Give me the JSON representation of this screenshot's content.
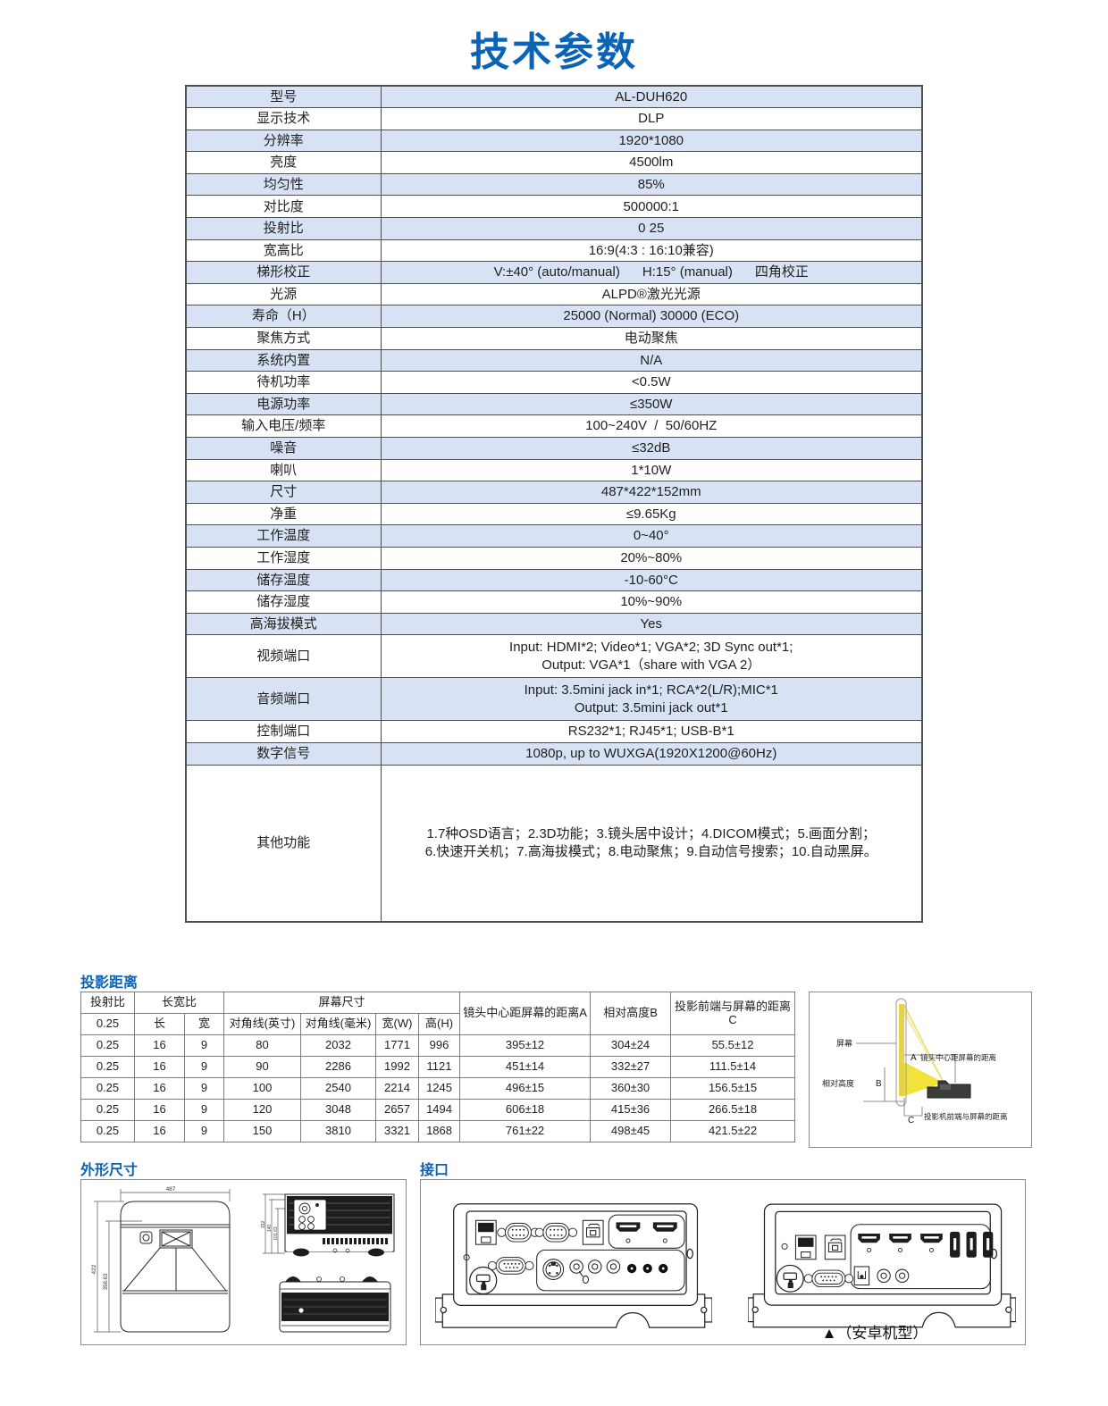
{
  "title": "技术参数",
  "colors": {
    "accent_blue": "#0b63b5",
    "row_light_blue": "#d7e3f4",
    "spec_table_border": "#4f4f4f",
    "diagram_border": "#8a8a8a",
    "beam_yellow": "#f2e23a",
    "projector_dark": "#3c3c3c"
  },
  "spec_table": {
    "rows": [
      {
        "label": "型号",
        "value": "AL-DUH620"
      },
      {
        "label": "显示技术",
        "value": "DLP"
      },
      {
        "label": "分辨率",
        "value": "1920*1080"
      },
      {
        "label": "亮度",
        "value": "4500lm"
      },
      {
        "label": "均匀性",
        "value": "85%"
      },
      {
        "label": "对比度",
        "value": "500000:1"
      },
      {
        "label": "投射比",
        "value": "0 25"
      },
      {
        "label": "宽高比",
        "value": "16:9(4:3 : 16:10兼容)"
      },
      {
        "label": "梯形校正",
        "value": "V:±40° (auto/manual)      H:15° (manual)      四角校正"
      },
      {
        "label": "光源",
        "value": "ALPD®激光光源"
      },
      {
        "label": "寿命（H）",
        "value": "25000 (Normal) 30000 (ECO)"
      },
      {
        "label": "聚焦方式",
        "value": "电动聚焦"
      },
      {
        "label": "系统内置",
        "value": "N/A"
      },
      {
        "label": "待机功率",
        "value": "<0.5W"
      },
      {
        "label": "电源功率",
        "value": "≤350W"
      },
      {
        "label": "输入电压/频率",
        "value": "100~240V  /  50/60HZ"
      },
      {
        "label": "噪音",
        "value": "≤32dB"
      },
      {
        "label": "喇叭",
        "value": "1*10W"
      },
      {
        "label": "尺寸",
        "value": "487*422*152mm"
      },
      {
        "label": "净重",
        "value": "≤9.65Kg"
      },
      {
        "label": "工作温度",
        "value": "0~40°"
      },
      {
        "label": "工作湿度",
        "value": "20%~80%"
      },
      {
        "label": "储存温度",
        "value": "-10-60°C"
      },
      {
        "label": "储存湿度",
        "value": "10%~90%"
      },
      {
        "label": "高海拔模式",
        "value": "Yes"
      },
      {
        "label": "视频端口",
        "lines": [
          "Input: HDMI*2; Video*1; VGA*2; 3D Sync out*1;",
          "Output: VGA*1（share with VGA 2）"
        ]
      },
      {
        "label": "音频端口",
        "lines": [
          "Input: 3.5mini jack in*1; RCA*2(L/R);MIC*1",
          "Output: 3.5mini jack out*1"
        ]
      },
      {
        "label": "控制端口",
        "value": "RS232*1; RJ45*1; USB-B*1"
      },
      {
        "label": "数字信号",
        "value": "1080p, up to WUXGA(1920X1200@60Hz)"
      },
      {
        "label": "其他功能",
        "tall": true,
        "lines": [
          "1.7种OSD语言；2.3D功能；3.镜头居中设计；4.DICOM模式；5.画面分割；",
          "6.快速开关机；7.高海拔模式；8.电动聚焦；9.自动信号搜索；10.自动黑屏。"
        ]
      }
    ]
  },
  "projection": {
    "heading": "投影距离",
    "header_row1": [
      {
        "text": "投射比"
      },
      {
        "text": "长宽比",
        "colspan": 2
      },
      {
        "text": "屏幕尺寸",
        "colspan": 4
      },
      {
        "text": "镜头中心距屏幕的距离A",
        "rowspan": 2
      },
      {
        "text": "相对高度B",
        "rowspan": 2
      },
      {
        "text": "投影前端与屏幕的距离C",
        "rowspan": 2
      }
    ],
    "header_row2": [
      "0.25",
      "长",
      "宽",
      "对角线(英寸)",
      "对角线(毫米)",
      "宽(W)",
      "高(H)"
    ],
    "rows": [
      [
        "0.25",
        "16",
        "9",
        "80",
        "2032",
        "1771",
        "996",
        "395±12",
        "304±24",
        "55.5±12"
      ],
      [
        "0.25",
        "16",
        "9",
        "90",
        "2286",
        "1992",
        "1121",
        "451±14",
        "332±27",
        "111.5±14"
      ],
      [
        "0.25",
        "16",
        "9",
        "100",
        "2540",
        "2214",
        "1245",
        "496±15",
        "360±30",
        "156.5±15"
      ],
      [
        "0.25",
        "16",
        "9",
        "120",
        "3048",
        "2657",
        "1494",
        "606±18",
        "415±36",
        "266.5±18"
      ],
      [
        "0.25",
        "16",
        "9",
        "150",
        "3810",
        "3321",
        "1868",
        "761±22",
        "498±45",
        "421.5±22"
      ]
    ],
    "diagram": {
      "screen_label": "屏幕",
      "a_letter": "A",
      "a_label": "镜头中心距屏幕的距离",
      "b_letter": "B",
      "b_label": "相对高度",
      "c_letter": "C",
      "c_label": "投影机前端与屏幕的距离"
    }
  },
  "dimensions": {
    "heading": "外形尺寸",
    "top_view": {
      "width_label": "487",
      "height_label": "422",
      "inner_label": "358.63"
    },
    "side_view": {
      "dim1": "152",
      "dim2": "140",
      "dim3": "101.63"
    }
  },
  "interfaces": {
    "heading": "接口",
    "android_caption": "▲（安卓机型）"
  }
}
